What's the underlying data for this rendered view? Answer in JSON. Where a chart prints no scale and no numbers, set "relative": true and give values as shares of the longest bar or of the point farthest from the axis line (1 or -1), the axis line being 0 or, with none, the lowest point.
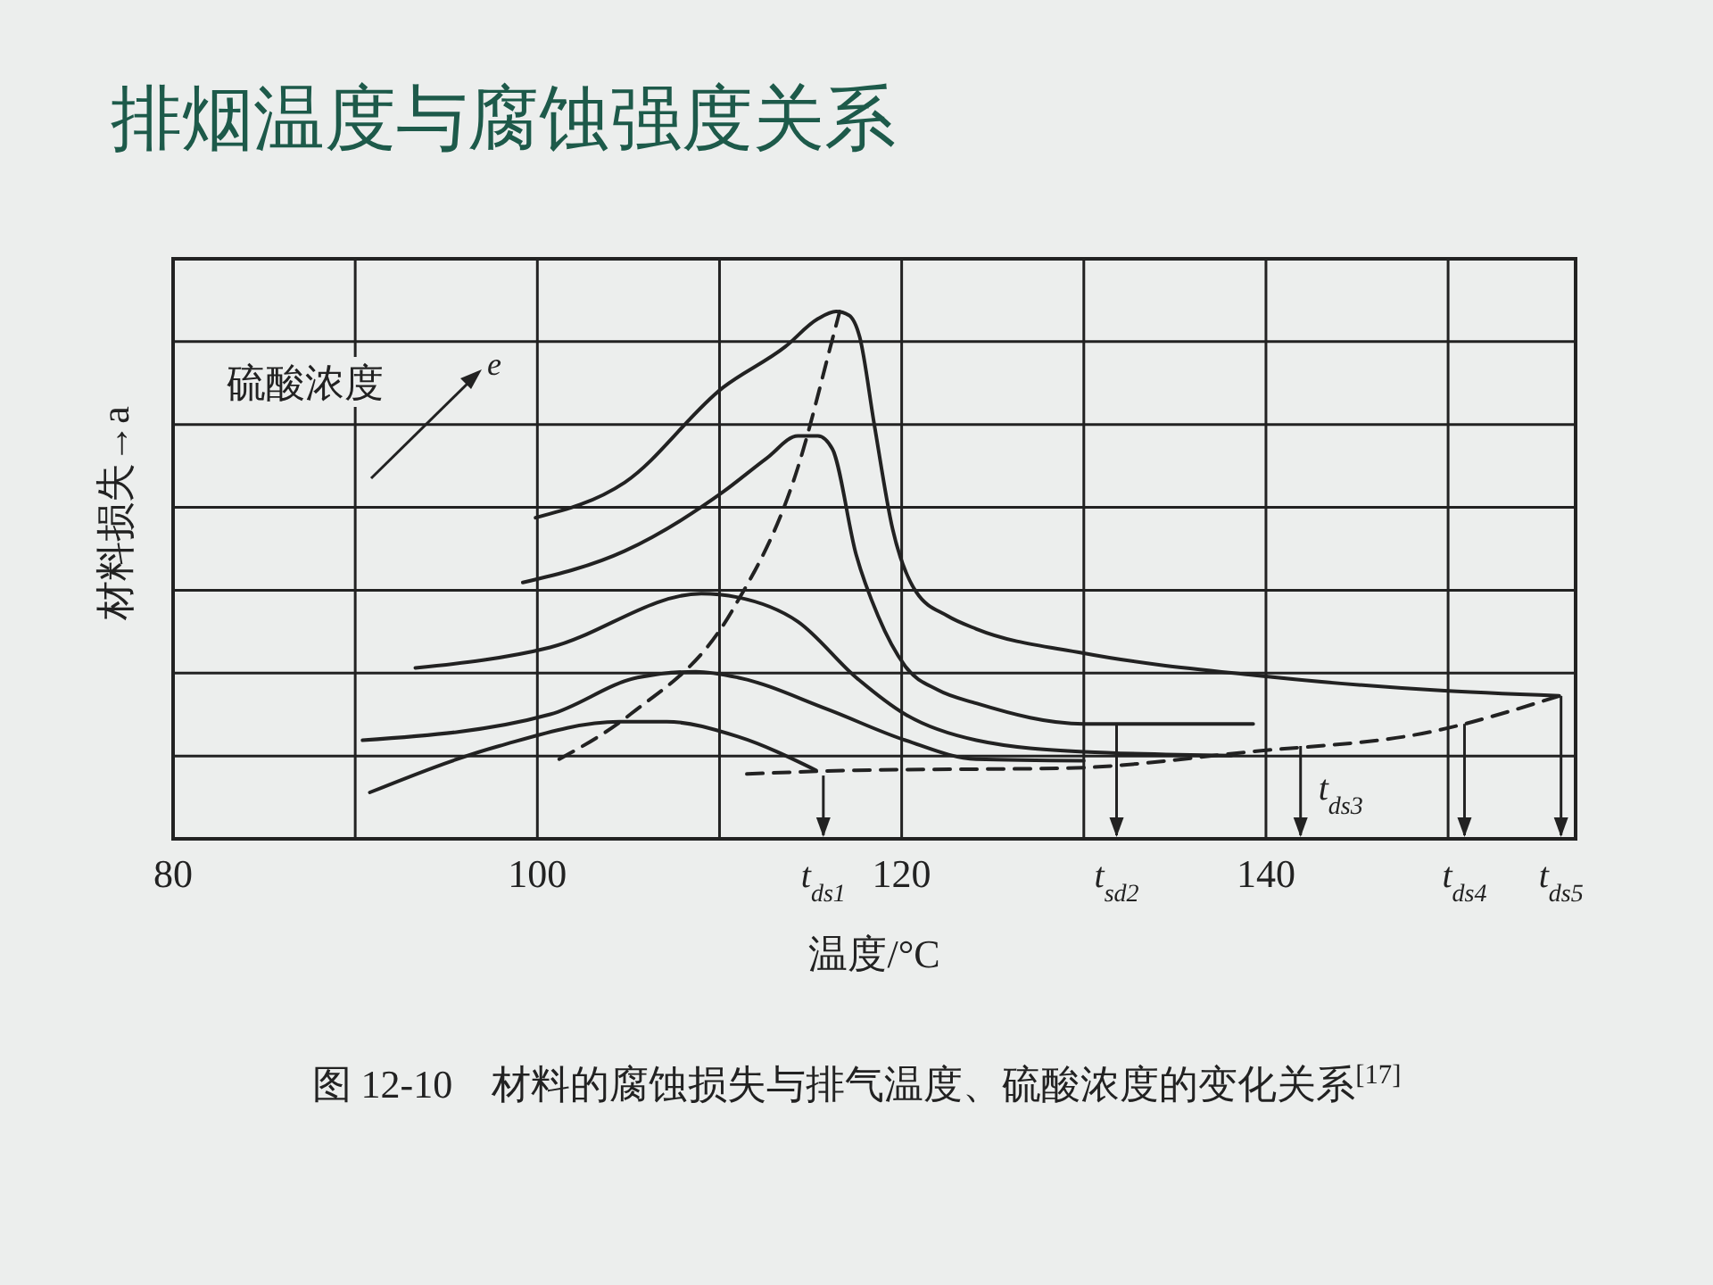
{
  "chart_data": {
    "type": "line",
    "title": "排烟温度与腐蚀强度关系",
    "xlabel": "温度/°C",
    "ylabel": "材料损失→a",
    "relative": true,
    "xlim": [
      80,
      157
    ],
    "xticks": [
      80,
      {
        "value": 90,
        "label": null
      },
      100,
      {
        "value": 110,
        "label": null
      },
      120,
      {
        "value": 130,
        "label": null
      },
      140,
      {
        "value": 150,
        "label": null
      }
    ],
    "grid": true,
    "series": [
      {
        "color": "#222222",
        "x": [
          99.9,
          104.8,
          110.2,
          113.6,
          115.4,
          116.4,
          117.1,
          117.7,
          118.5,
          119.5,
          120.8,
          122.5,
          124.1,
          130.0,
          139.4,
          149.2,
          156.1
        ],
        "values": [
          0.609,
          0.676,
          0.856,
          0.933,
          0.986,
          1.0,
          0.993,
          0.951,
          0.785,
          0.588,
          0.468,
          0.423,
          0.398,
          0.352,
          0.31,
          0.282,
          0.271
        ]
      },
      {
        "color": "#222222",
        "x": [
          99.2,
          104.8,
          110.2,
          112.6,
          114.3,
          115.4,
          116.2,
          117.5,
          118.7,
          120.2,
          122.0,
          124.1,
          130.0,
          139.3
        ],
        "values": [
          0.486,
          0.546,
          0.658,
          0.722,
          0.764,
          0.764,
          0.739,
          0.539,
          0.423,
          0.327,
          0.282,
          0.257,
          0.218,
          0.218
        ]
      },
      {
        "color": "#222222",
        "x": [
          93.3,
          100.7,
          109.0,
          111.0,
          114.3,
          117.5,
          120.2,
          124.1,
          130.0,
          138.1
        ],
        "values": [
          0.324,
          0.363,
          0.465,
          0.458,
          0.412,
          0.306,
          0.236,
          0.187,
          0.165,
          0.158
        ]
      },
      {
        "color": "#222222",
        "x": [
          90.4,
          100.7,
          105.5,
          108.7,
          111.0,
          115.9,
          120.2,
          124.1,
          130.0
        ],
        "values": [
          0.187,
          0.236,
          0.306,
          0.317,
          0.306,
          0.246,
          0.187,
          0.151,
          0.148
        ]
      },
      {
        "color": "#222222",
        "x": [
          90.8,
          97.9,
          104.5,
          107.1,
          111.0,
          115.3
        ],
        "values": [
          0.088,
          0.176,
          0.222,
          0.222,
          0.194,
          0.13
        ]
      },
      {
        "color": "#222222",
        "line_style": "dashed",
        "x": [
          101.2,
          105.1,
          110.7,
          114.3,
          116.3,
          116.6
        ],
        "values": [
          0.151,
          0.236,
          0.433,
          0.704,
          0.961,
          1.0
        ]
      },
      {
        "color": "#222222",
        "line_style": "dashed",
        "x": [
          111.5,
          117.5,
          129.0,
          139.1,
          149.2,
          156.1
        ],
        "values": [
          0.123,
          0.13,
          0.134,
          0.165,
          0.204,
          0.271
        ]
      }
    ],
    "annotations": [
      "硫酸浓度",
      "e",
      "图 12-10　材料的腐蚀损失与排气温度、硫酸浓度的变化关系$^{[17]}$",
      {
        "text": "t$_{ds1}$",
        "x": 115.7,
        "y": 0.12
      },
      {
        "text": "t$_{sd2}$",
        "x": 131.8,
        "y": 0.218
      },
      {
        "text": "t$_{ds3}$",
        "x": 141.9,
        "y": 0.176
      },
      {
        "text": "t$_{ds4}$",
        "x": 150.9,
        "y": 0.218
      },
      {
        "text": "t$_{ds5}$",
        "x": 156.2,
        "y": 0.271
      }
    ]
  }
}
